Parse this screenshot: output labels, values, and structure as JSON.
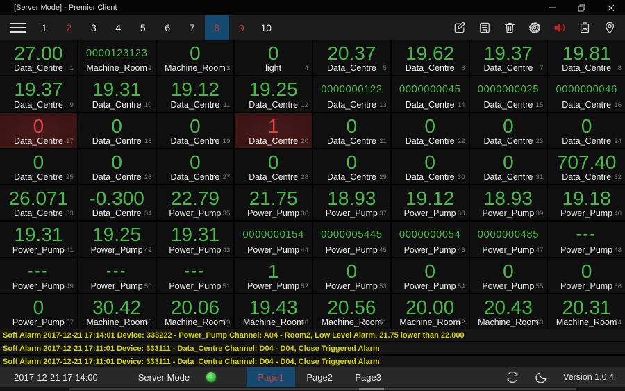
{
  "window": {
    "title": "[Server Mode] - Premier Client"
  },
  "toolbar": {
    "pages": [
      {
        "label": "1",
        "color": "white",
        "selected": false
      },
      {
        "label": "2",
        "color": "red",
        "selected": false
      },
      {
        "label": "3",
        "color": "white",
        "selected": false
      },
      {
        "label": "4",
        "color": "white",
        "selected": false
      },
      {
        "label": "5",
        "color": "white",
        "selected": false
      },
      {
        "label": "6",
        "color": "white",
        "selected": false
      },
      {
        "label": "7",
        "color": "white",
        "selected": false
      },
      {
        "label": "8",
        "color": "red",
        "selected": true
      },
      {
        "label": "9",
        "color": "red",
        "selected": false
      },
      {
        "label": "10",
        "color": "white",
        "selected": false
      }
    ],
    "icons": [
      "edit-icon",
      "save-icon",
      "delete-icon",
      "settings-icon",
      "alarm-sound-icon",
      "clear-screen-icon",
      "location-icon"
    ]
  },
  "tiles": [
    {
      "index": 1,
      "value": "27.00",
      "label": "Data_Centre",
      "alarm": false
    },
    {
      "index": 2,
      "value": "0000123123",
      "label": "Machine_Room",
      "alarm": false
    },
    {
      "index": 3,
      "value": "0",
      "label": "Machine_Room",
      "alarm": false
    },
    {
      "index": 4,
      "value": "0",
      "label": "light",
      "alarm": false
    },
    {
      "index": 5,
      "value": "20.37",
      "label": "Data_Centre",
      "alarm": false
    },
    {
      "index": 6,
      "value": "19.62",
      "label": "Data_Centre",
      "alarm": false
    },
    {
      "index": 7,
      "value": "19.37",
      "label": "Data_Centre",
      "alarm": false
    },
    {
      "index": 8,
      "value": "19.81",
      "label": "Data_Centre",
      "alarm": false
    },
    {
      "index": 9,
      "value": "19.37",
      "label": "Data_Centre",
      "alarm": false
    },
    {
      "index": 10,
      "value": "19.31",
      "label": "Data_Centre",
      "alarm": false
    },
    {
      "index": 11,
      "value": "19.12",
      "label": "Data_Centre",
      "alarm": false
    },
    {
      "index": 12,
      "value": "19.25",
      "label": "Data_Centre",
      "alarm": false
    },
    {
      "index": 13,
      "value": "0000000122",
      "label": "Data_Centre",
      "alarm": false
    },
    {
      "index": 14,
      "value": "0000000045",
      "label": "Data_Centre",
      "alarm": false
    },
    {
      "index": 15,
      "value": "0000000025",
      "label": "Data_Centre",
      "alarm": false
    },
    {
      "index": 16,
      "value": "0000000046",
      "label": "Data_Centre",
      "alarm": false
    },
    {
      "index": 17,
      "value": "0",
      "label": "Data_Centre",
      "alarm": true
    },
    {
      "index": 18,
      "value": "0",
      "label": "Data_Centre",
      "alarm": false
    },
    {
      "index": 19,
      "value": "0",
      "label": "Data_Centre",
      "alarm": false
    },
    {
      "index": 20,
      "value": "1",
      "label": "Data_Centre",
      "alarm": true
    },
    {
      "index": 21,
      "value": "0",
      "label": "Data_Centre",
      "alarm": false
    },
    {
      "index": 22,
      "value": "0",
      "label": "Data_Centre",
      "alarm": false
    },
    {
      "index": 23,
      "value": "0",
      "label": "Data_Centre",
      "alarm": false
    },
    {
      "index": 24,
      "value": "0",
      "label": "Data_Centre",
      "alarm": false
    },
    {
      "index": 25,
      "value": "0",
      "label": "Data_Centre",
      "alarm": false
    },
    {
      "index": 26,
      "value": "0",
      "label": "Data_Centre",
      "alarm": false
    },
    {
      "index": 27,
      "value": "0",
      "label": "Data_Centre",
      "alarm": false
    },
    {
      "index": 28,
      "value": "0",
      "label": "Data_Centre",
      "alarm": false
    },
    {
      "index": 29,
      "value": "0",
      "label": "Data_Centre",
      "alarm": false
    },
    {
      "index": 30,
      "value": "0",
      "label": "Data_Centre",
      "alarm": false
    },
    {
      "index": 31,
      "value": "0",
      "label": "Data_Centre",
      "alarm": false
    },
    {
      "index": 32,
      "value": "707.40",
      "label": "Data_Centre",
      "alarm": false
    },
    {
      "index": 33,
      "value": "26.071",
      "label": "Data_Centre",
      "alarm": false
    },
    {
      "index": 34,
      "value": "-0.300",
      "label": "Data_Centre",
      "alarm": false
    },
    {
      "index": 35,
      "value": "22.79",
      "label": "Power_Pump",
      "alarm": false
    },
    {
      "index": 36,
      "value": "21.75",
      "label": "Power_Pump",
      "alarm": false
    },
    {
      "index": 37,
      "value": "18.93",
      "label": "Power_Pump",
      "alarm": false
    },
    {
      "index": 38,
      "value": "19.12",
      "label": "Power_Pump",
      "alarm": false
    },
    {
      "index": 39,
      "value": "18.93",
      "label": "Power_Pump",
      "alarm": false
    },
    {
      "index": 40,
      "value": "19.18",
      "label": "Power_Pump",
      "alarm": false
    },
    {
      "index": 41,
      "value": "19.31",
      "label": "Power_Pump",
      "alarm": false
    },
    {
      "index": 42,
      "value": "19.25",
      "label": "Power_Pump",
      "alarm": false
    },
    {
      "index": 43,
      "value": "19.31",
      "label": "Power_Pump",
      "alarm": false
    },
    {
      "index": 44,
      "value": "0000000154",
      "label": "Power_Pump",
      "alarm": false
    },
    {
      "index": 45,
      "value": "0000005445",
      "label": "Power_Pump",
      "alarm": false
    },
    {
      "index": 46,
      "value": "0000000054",
      "label": "Power_Pump",
      "alarm": false
    },
    {
      "index": 47,
      "value": "0000000485",
      "label": "Power_Pump",
      "alarm": false
    },
    {
      "index": 48,
      "value": "---",
      "label": "Power_Pump",
      "alarm": false
    },
    {
      "index": 49,
      "value": "---",
      "label": "Power_Pump",
      "alarm": false
    },
    {
      "index": 50,
      "value": "---",
      "label": "Power_Pump",
      "alarm": false
    },
    {
      "index": 51,
      "value": "---",
      "label": "Power_Pump",
      "alarm": false
    },
    {
      "index": 52,
      "value": "1",
      "label": "Power_Pump",
      "alarm": false
    },
    {
      "index": 53,
      "value": "0",
      "label": "Power_Pump",
      "alarm": false
    },
    {
      "index": 54,
      "value": "0",
      "label": "Power_Pump",
      "alarm": false
    },
    {
      "index": 55,
      "value": "0",
      "label": "Power_Pump",
      "alarm": false
    },
    {
      "index": 56,
      "value": "0",
      "label": "Power_Pump",
      "alarm": false
    },
    {
      "index": 57,
      "value": "0",
      "label": "Power_Pump",
      "alarm": false
    },
    {
      "index": 58,
      "value": "30.42",
      "label": "Machine_Room",
      "alarm": false
    },
    {
      "index": 59,
      "value": "20.06",
      "label": "Machine_Room",
      "alarm": false
    },
    {
      "index": 60,
      "value": "19.43",
      "label": "Machine_Room",
      "alarm": false
    },
    {
      "index": 61,
      "value": "20.56",
      "label": "Machine_Room",
      "alarm": false
    },
    {
      "index": 62,
      "value": "20.00",
      "label": "Machine_Room",
      "alarm": false
    },
    {
      "index": 63,
      "value": "20.43",
      "label": "Machine_Room",
      "alarm": false
    },
    {
      "index": 64,
      "value": "20.31",
      "label": "Machine_Room",
      "alarm": false
    }
  ],
  "alarms": [
    "Soft Alarm 2017-12-21 17:14:01 Device: 333222 - Power_Pump Channel: A04 - Room2, Low Level Alarm, 21.75 lower than 22.000",
    "Soft Alarm 2017-12-21 17:11:01 Device: 333111 - Data_Centre Channel: D04 - D04, Close Triggered Alarm",
    "Soft Alarm 2017-12-21 17:11:01 Device: 333111 - Data_Centre Channel: D04 - D04, Close Triggered Alarm"
  ],
  "statusbar": {
    "timestamp": "2017-12-21 17:14:00",
    "mode": "Server Mode",
    "tabs": [
      {
        "label": "Page1",
        "active": true
      },
      {
        "label": "Page2",
        "active": false
      },
      {
        "label": "Page3",
        "active": false
      }
    ],
    "version": "Version 1.0.4"
  },
  "colors": {
    "value_green": "#4bb84b",
    "value_red": "#e04343",
    "tile_alarm_bg": "#3b1414",
    "accent_blue": "#16496f",
    "accent_red": "#c13a3a",
    "alarm_text": "#d6d400",
    "led_green": "#3ec43e"
  }
}
